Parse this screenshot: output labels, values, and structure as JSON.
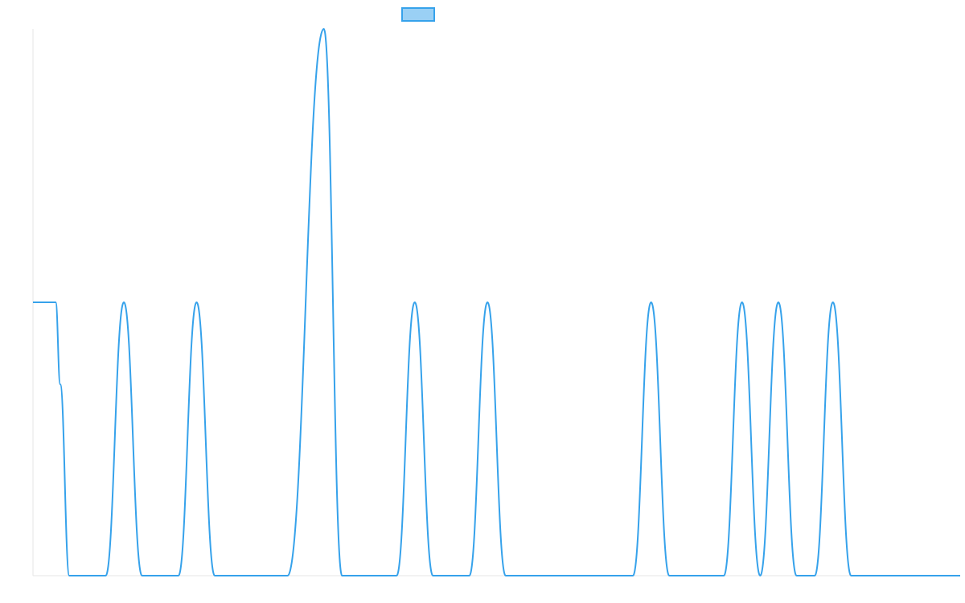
{
  "chart_data": {
    "type": "line",
    "title": "",
    "xlabel": "",
    "ylabel": "",
    "ylim": [
      0,
      2
    ],
    "grid": false,
    "legend": {
      "placement": "top-center",
      "entries": [
        ""
      ]
    },
    "colors": {
      "line": "#36a2eb",
      "legend_fill": "#9ad0f5",
      "axis": "#e5e5e5"
    },
    "series": [
      {
        "name": "",
        "points": [
          {
            "x": 0,
            "y": 1
          },
          {
            "x": 0.5,
            "y": 1
          },
          {
            "x": 2.5,
            "y": 1
          },
          {
            "x": 3,
            "y": 0.7
          },
          {
            "x": 4,
            "y": 0
          },
          {
            "x": 8,
            "y": 0
          },
          {
            "x": 10,
            "y": 1
          },
          {
            "x": 12,
            "y": 0
          },
          {
            "x": 16,
            "y": 0
          },
          {
            "x": 18,
            "y": 1
          },
          {
            "x": 20,
            "y": 0
          },
          {
            "x": 28,
            "y": 0
          },
          {
            "x": 32,
            "y": 2
          },
          {
            "x": 34,
            "y": 0
          },
          {
            "x": 40,
            "y": 0
          },
          {
            "x": 42,
            "y": 1
          },
          {
            "x": 44,
            "y": 0
          },
          {
            "x": 48,
            "y": 0
          },
          {
            "x": 50,
            "y": 1
          },
          {
            "x": 52,
            "y": 0
          },
          {
            "x": 66,
            "y": 0
          },
          {
            "x": 68,
            "y": 1
          },
          {
            "x": 70,
            "y": 0
          },
          {
            "x": 76,
            "y": 0
          },
          {
            "x": 78,
            "y": 1
          },
          {
            "x": 80,
            "y": 0
          },
          {
            "x": 82,
            "y": 1
          },
          {
            "x": 84,
            "y": 0
          },
          {
            "x": 86,
            "y": 0
          },
          {
            "x": 88,
            "y": 1
          },
          {
            "x": 90,
            "y": 0
          },
          {
            "x": 102,
            "y": 0
          }
        ]
      }
    ]
  }
}
